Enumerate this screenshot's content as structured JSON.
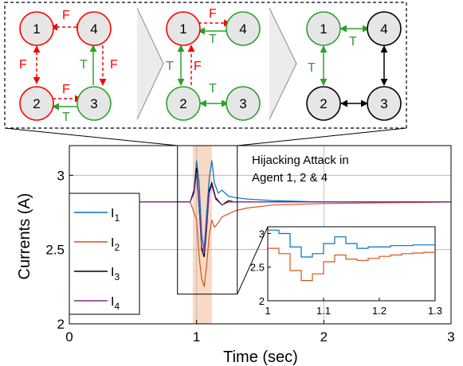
{
  "chart_data": {
    "type": "line",
    "title": "",
    "xlabel": "Time (sec)",
    "ylabel": "Currents (A)",
    "xlim": [
      0,
      3
    ],
    "ylim": [
      2,
      3.2
    ],
    "x_ticks": [
      "0",
      "1",
      "2",
      "3"
    ],
    "y_ticks": [
      "2",
      "2.5",
      "3"
    ],
    "grid": true,
    "legend_placement": "bottom-left",
    "annotation": [
      "Hijacking Attack in",
      "Agent 1, 2 & 4"
    ],
    "attack_window": [
      0.97,
      1.12
    ],
    "series": [
      {
        "name_base": "I",
        "name_sub": "1",
        "color": "#0072BD",
        "x": [
          0,
          0.95,
          0.98,
          1.0,
          1.02,
          1.04,
          1.06,
          1.08,
          1.1,
          1.12,
          1.14,
          1.17,
          1.2,
          1.25,
          1.3,
          1.4,
          1.6,
          2.0,
          3.0
        ],
        "y": [
          2.82,
          2.82,
          2.9,
          3.1,
          2.95,
          2.6,
          2.5,
          2.75,
          2.98,
          3.1,
          2.95,
          2.88,
          2.9,
          2.86,
          2.85,
          2.84,
          2.83,
          2.82,
          2.82
        ]
      },
      {
        "name_base": "I",
        "name_sub": "2",
        "color": "#D95319",
        "x": [
          0,
          0.95,
          0.98,
          1.0,
          1.02,
          1.04,
          1.06,
          1.08,
          1.1,
          1.12,
          1.14,
          1.17,
          1.2,
          1.25,
          1.3,
          1.4,
          1.6,
          2.0,
          3.0
        ],
        "y": [
          2.82,
          2.82,
          2.75,
          2.7,
          2.45,
          2.3,
          2.25,
          2.4,
          2.6,
          2.7,
          2.65,
          2.68,
          2.72,
          2.74,
          2.76,
          2.78,
          2.8,
          2.81,
          2.82
        ]
      },
      {
        "name_base": "I",
        "name_sub": "3",
        "color": "#000000",
        "x": [
          0,
          0.95,
          0.98,
          1.0,
          1.02,
          1.04,
          1.06,
          1.08,
          1.1,
          1.12,
          1.15,
          1.2,
          1.25,
          1.3,
          1.4,
          1.6,
          2.0,
          3.0
        ],
        "y": [
          2.82,
          2.82,
          2.9,
          3.05,
          2.8,
          2.5,
          2.45,
          2.65,
          2.9,
          2.95,
          2.85,
          2.8,
          2.83,
          2.82,
          2.82,
          2.82,
          2.82,
          2.82
        ]
      },
      {
        "name_base": "I",
        "name_sub": "4",
        "color": "#7E2F8E",
        "x": [
          0,
          0.95,
          0.98,
          1.0,
          1.02,
          1.04,
          1.06,
          1.08,
          1.1,
          1.12,
          1.15,
          1.2,
          1.25,
          1.3,
          1.4,
          1.6,
          2.0,
          3.0
        ],
        "y": [
          2.82,
          2.82,
          2.88,
          3.02,
          2.78,
          2.52,
          2.48,
          2.68,
          2.88,
          2.93,
          2.84,
          2.8,
          2.82,
          2.82,
          2.82,
          2.82,
          2.82,
          2.82
        ]
      }
    ],
    "inset": {
      "xlim": [
        1,
        1.3
      ],
      "ylim": [
        2,
        3.1
      ],
      "x_ticks": [
        "1",
        "1.1",
        "1.2",
        "1.3"
      ],
      "y_ticks": [
        "2",
        "2.5",
        "3"
      ],
      "series": [
        {
          "color": "#0072BD",
          "x": [
            1.0,
            1.02,
            1.04,
            1.06,
            1.08,
            1.1,
            1.12,
            1.14,
            1.16,
            1.18,
            1.2,
            1.22,
            1.24,
            1.26,
            1.28,
            1.3
          ],
          "y": [
            3.05,
            3.0,
            2.8,
            2.65,
            2.7,
            2.85,
            2.95,
            2.85,
            2.78,
            2.8,
            2.8,
            2.82,
            2.82,
            2.83,
            2.83,
            2.83
          ]
        },
        {
          "color": "#D95319",
          "x": [
            1.0,
            1.02,
            1.04,
            1.06,
            1.08,
            1.1,
            1.12,
            1.14,
            1.16,
            1.18,
            1.2,
            1.22,
            1.24,
            1.26,
            1.28,
            1.3
          ],
          "y": [
            2.78,
            2.7,
            2.45,
            2.3,
            2.4,
            2.58,
            2.68,
            2.62,
            2.6,
            2.63,
            2.66,
            2.68,
            2.7,
            2.71,
            2.72,
            2.72
          ]
        }
      ]
    }
  },
  "graphs": [
    {
      "nodes": [
        {
          "label": "1",
          "fill": "#e6e6e6",
          "stroke": "#ff0000"
        },
        {
          "label": "4",
          "fill": "#e6e6e6",
          "stroke": "#ff0000"
        },
        {
          "label": "2",
          "fill": "#e6e6e6",
          "stroke": "#ff0000"
        },
        {
          "label": "3",
          "fill": "#e6e6e6",
          "stroke": "#2ca02c"
        }
      ],
      "edge_labels": [
        "F",
        "F",
        "F",
        "T",
        "F",
        "T",
        "F"
      ]
    },
    {
      "nodes": [
        {
          "label": "1",
          "fill": "#e6e6e6",
          "stroke": "#ff0000"
        },
        {
          "label": "4",
          "fill": "#e6e6e6",
          "stroke": "#2ca02c"
        },
        {
          "label": "2",
          "fill": "#e6e6e6",
          "stroke": "#2ca02c"
        },
        {
          "label": "3",
          "fill": "#e6e6e6",
          "stroke": "#2ca02c"
        }
      ],
      "edge_labels": [
        "F",
        "T",
        "T",
        "F",
        "T"
      ]
    },
    {
      "nodes": [
        {
          "label": "1",
          "fill": "#e6e6e6",
          "stroke": "#2ca02c"
        },
        {
          "label": "4",
          "fill": "#e6e6e6",
          "stroke": "#000000"
        },
        {
          "label": "2",
          "fill": "#e6e6e6",
          "stroke": "#000000"
        },
        {
          "label": "3",
          "fill": "#e6e6e6",
          "stroke": "#000000"
        }
      ],
      "edge_labels": [
        "T",
        "T"
      ]
    }
  ],
  "colors": {
    "red": "#ff0000",
    "green": "#2ca02c",
    "black": "#000000",
    "attack_shade": "#f9d9c4"
  }
}
